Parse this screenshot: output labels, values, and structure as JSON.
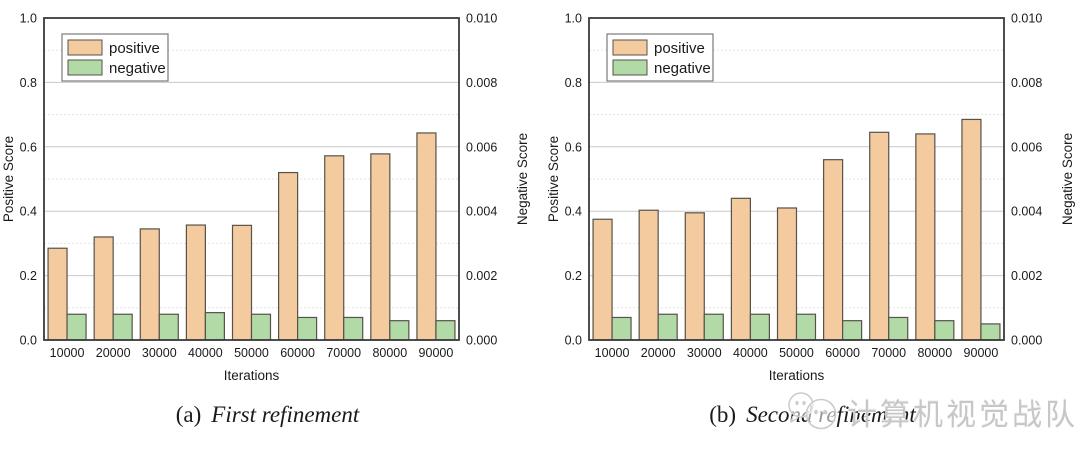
{
  "figure": {
    "captions": [
      {
        "prefix": "(a)",
        "text": "First refinement"
      },
      {
        "prefix": "(b)",
        "text": "Second refinement"
      }
    ],
    "watermark": {
      "icon": "wechat-bubbles-icon",
      "text": "计算机视觉战队"
    }
  },
  "colors": {
    "positive_fill": "#F4CA9F",
    "negative_fill": "#B2DAA7",
    "bar_edge": "#57524B",
    "frame": "#3a3a3a",
    "grid_major": "#c9c9c9",
    "grid_minor": "#e4e4e4",
    "legend_border": "#7a7a7a",
    "text": "#1a1a1a",
    "watermark_gray": "#c7c7c7"
  },
  "chart_data": [
    {
      "type": "bar",
      "title": "(a) First refinement",
      "xlabel": "Iterations",
      "ylabel_left": "Positive Score",
      "ylabel_right": "Negative Score",
      "categories": [
        "10000",
        "20000",
        "30000",
        "40000",
        "50000",
        "60000",
        "70000",
        "80000",
        "90000"
      ],
      "series": [
        {
          "name": "positive",
          "axis": "left",
          "values": [
            0.285,
            0.32,
            0.345,
            0.357,
            0.356,
            0.52,
            0.572,
            0.578,
            0.643
          ]
        },
        {
          "name": "negative",
          "axis": "right",
          "values": [
            0.0008,
            0.0008,
            0.0008,
            0.00085,
            0.0008,
            0.0007,
            0.0007,
            0.0006,
            0.0006
          ]
        }
      ],
      "ylim_left": [
        0.0,
        1.0
      ],
      "ylim_right": [
        0.0,
        0.01
      ],
      "left_tick_labels": [
        "0.0",
        "0.2",
        "0.4",
        "0.6",
        "0.8",
        "1.0"
      ],
      "right_tick_labels": [
        "0.000",
        "0.002",
        "0.004",
        "0.006",
        "0.008",
        "0.010"
      ],
      "legend": {
        "position": "top-left",
        "labels": [
          "positive",
          "negative"
        ]
      },
      "grid": "horizontal; solid major lines every 0.2, dotted minor lines every 0.1"
    },
    {
      "type": "bar",
      "title": "(b) Second refinement",
      "xlabel": "Iterations",
      "ylabel_left": "Positive Score",
      "ylabel_right": "Negative Score",
      "categories": [
        "10000",
        "20000",
        "30000",
        "40000",
        "50000",
        "60000",
        "70000",
        "80000",
        "90000"
      ],
      "series": [
        {
          "name": "positive",
          "axis": "left",
          "values": [
            0.375,
            0.403,
            0.395,
            0.44,
            0.41,
            0.56,
            0.645,
            0.64,
            0.685
          ]
        },
        {
          "name": "negative",
          "axis": "right",
          "values": [
            0.0007,
            0.0008,
            0.0008,
            0.0008,
            0.0008,
            0.0006,
            0.0007,
            0.0006,
            0.0005
          ]
        }
      ],
      "ylim_left": [
        0.0,
        1.0
      ],
      "ylim_right": [
        0.0,
        0.01
      ],
      "left_tick_labels": [
        "0.0",
        "0.2",
        "0.4",
        "0.6",
        "0.8",
        "1.0"
      ],
      "right_tick_labels": [
        "0.000",
        "0.002",
        "0.004",
        "0.006",
        "0.008",
        "0.010"
      ],
      "legend": {
        "position": "top-left",
        "labels": [
          "positive",
          "negative"
        ]
      },
      "grid": "horizontal; solid major lines every 0.2, dotted minor lines every 0.1"
    }
  ]
}
